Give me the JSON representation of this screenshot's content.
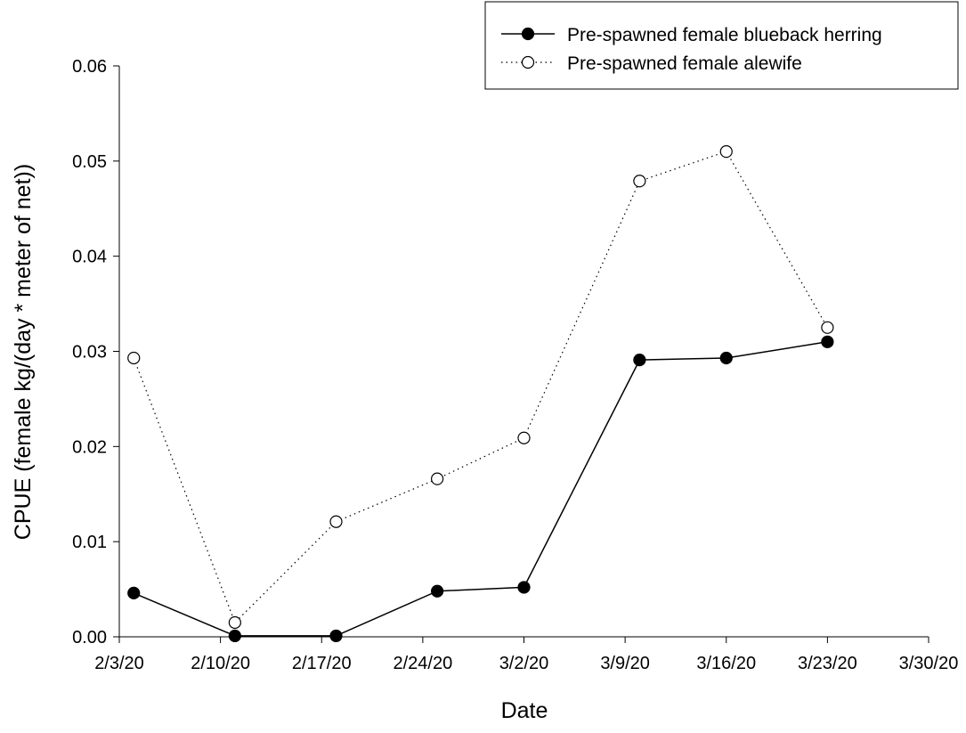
{
  "chart_data": {
    "type": "line",
    "xlabel": "Date",
    "ylabel": "CPUE (female kg/(day * meter of net))",
    "x_ticks": [
      "2/3/20",
      "2/10/20",
      "2/17/20",
      "2/24/20",
      "3/2/20",
      "3/9/20",
      "3/16/20",
      "3/23/20",
      "3/30/20"
    ],
    "y_ticks": [
      "0.00",
      "0.01",
      "0.02",
      "0.03",
      "0.04",
      "0.05",
      "0.06"
    ],
    "xlim": [
      "2020-02-03",
      "2020-03-30"
    ],
    "ylim": [
      0,
      0.06
    ],
    "legend_position": "top-right",
    "series": [
      {
        "name": "Pre-spawned female blueback herring",
        "line_style": "solid",
        "marker": "filled-circle",
        "color": "#000000",
        "x": [
          "2020-02-04",
          "2020-02-11",
          "2020-02-18",
          "2020-02-25",
          "2020-03-02",
          "2020-03-10",
          "2020-03-16",
          "2020-03-23"
        ],
        "y": [
          0.0046,
          0.0001,
          0.0001,
          0.0048,
          0.0052,
          0.0291,
          0.0293,
          0.031
        ]
      },
      {
        "name": "Pre-spawned female alewife",
        "line_style": "dotted",
        "marker": "open-circle",
        "color": "#000000",
        "x": [
          "2020-02-04",
          "2020-02-11",
          "2020-02-18",
          "2020-02-25",
          "2020-03-02",
          "2020-03-10",
          "2020-03-16",
          "2020-03-23"
        ],
        "y": [
          0.0293,
          0.0015,
          0.0121,
          0.0166,
          0.0209,
          0.0479,
          0.051,
          0.0325
        ]
      }
    ]
  }
}
